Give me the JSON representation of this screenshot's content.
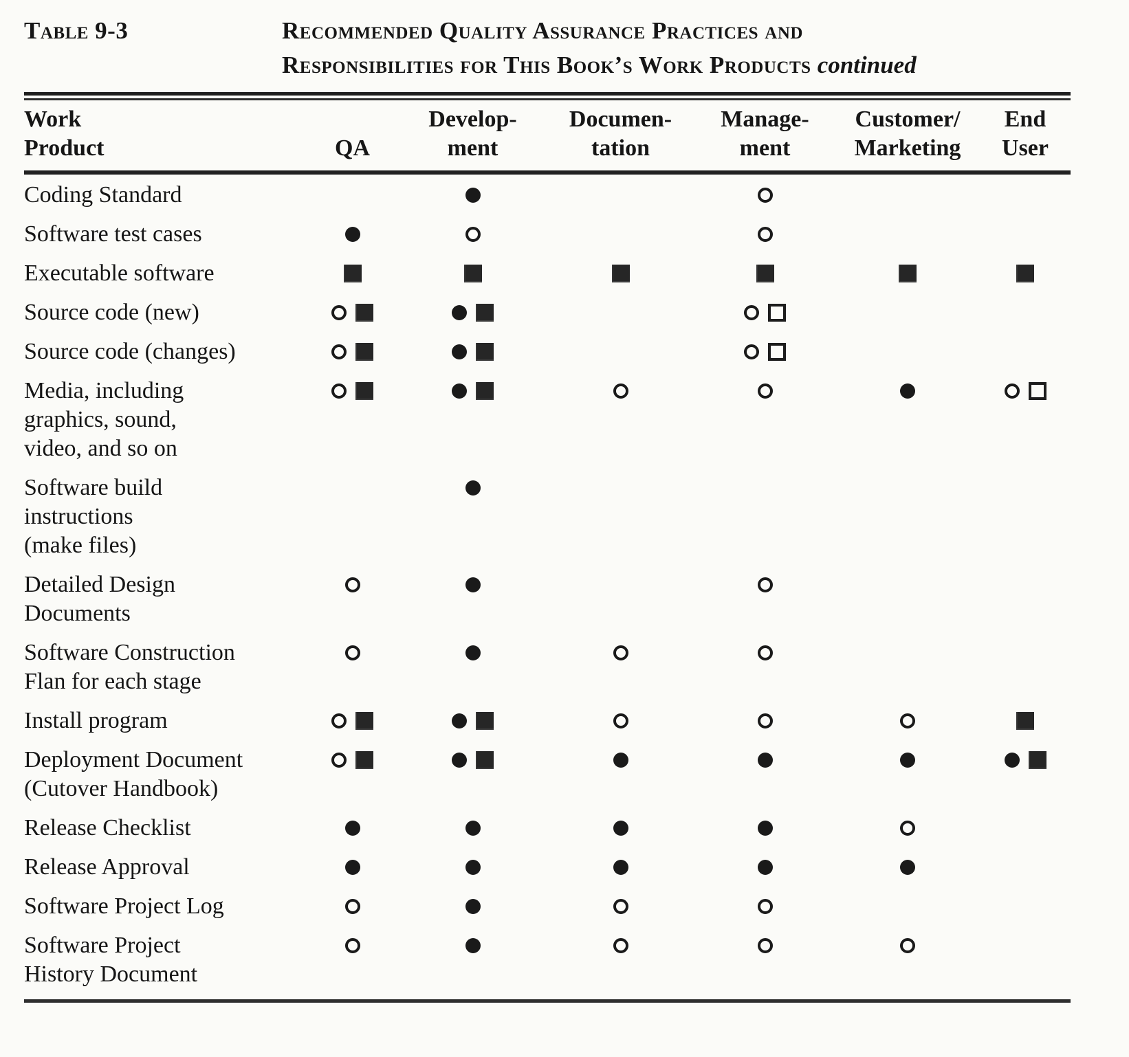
{
  "colors": {
    "ink": "#161616",
    "square_fill": "#262626",
    "paper": "#fbfbf8"
  },
  "caption": {
    "label": "Table 9-3",
    "title_line1": "Recommended Quality Assurance Practices and",
    "title_line2": "Responsibilities for This Book’s Work Products",
    "continued": "continued"
  },
  "columns": [
    {
      "key": "work_product",
      "line1": "Work",
      "line2": "Product"
    },
    {
      "key": "qa",
      "line1": "",
      "line2": "QA"
    },
    {
      "key": "development",
      "line1": "Develop-",
      "line2": "ment"
    },
    {
      "key": "documentation",
      "line1": "Documen-",
      "line2": "tation"
    },
    {
      "key": "management",
      "line1": "Manage-",
      "line2": "ment"
    },
    {
      "key": "customer_marketing",
      "line1": "Customer/",
      "line2": "Marketing"
    },
    {
      "key": "end_user",
      "line1": "End",
      "line2": "User"
    }
  ],
  "symbol_glyphs": {
    "filled-circle": "●",
    "open-circle": "○",
    "filled-square": "■",
    "open-square": "□"
  },
  "rows": [
    {
      "lines": [
        "Coding Standard"
      ],
      "cells": [
        [],
        [
          "filled-circle"
        ],
        [],
        [
          "open-circle"
        ],
        [],
        []
      ]
    },
    {
      "lines": [
        "Software test cases"
      ],
      "cells": [
        [
          "filled-circle"
        ],
        [
          "open-circle"
        ],
        [],
        [
          "open-circle"
        ],
        [],
        []
      ]
    },
    {
      "lines": [
        "Executable software"
      ],
      "cells": [
        [
          "filled-square"
        ],
        [
          "filled-square"
        ],
        [
          "filled-square"
        ],
        [
          "filled-square"
        ],
        [
          "filled-square"
        ],
        [
          "filled-square"
        ]
      ]
    },
    {
      "lines": [
        "Source code (new)"
      ],
      "cells": [
        [
          "open-circle",
          "filled-square"
        ],
        [
          "filled-circle",
          "filled-square"
        ],
        [],
        [
          "open-circle",
          "open-square"
        ],
        [],
        []
      ]
    },
    {
      "lines": [
        "Source code (changes)"
      ],
      "cells": [
        [
          "open-circle",
          "filled-square"
        ],
        [
          "filled-circle",
          "filled-square"
        ],
        [],
        [
          "open-circle",
          "open-square"
        ],
        [],
        []
      ]
    },
    {
      "lines": [
        "Media, including",
        "graphics, sound,",
        "video, and so on"
      ],
      "cells": [
        [
          "open-circle",
          "filled-square"
        ],
        [
          "filled-circle",
          "filled-square"
        ],
        [
          "open-circle"
        ],
        [
          "open-circle"
        ],
        [
          "filled-circle"
        ],
        [
          "open-circle",
          "open-square"
        ]
      ]
    },
    {
      "lines": [
        "Software  build",
        "instructions",
        "(make files)"
      ],
      "cells": [
        [],
        [
          "filled-circle"
        ],
        [],
        [],
        [],
        []
      ]
    },
    {
      "lines": [
        "Detailed Design",
        "Documents"
      ],
      "cells": [
        [
          "open-circle"
        ],
        [
          "filled-circle"
        ],
        [],
        [
          "open-circle"
        ],
        [],
        []
      ]
    },
    {
      "lines": [
        "Software  Construction",
        "Flan for each stage"
      ],
      "cells": [
        [
          "open-circle"
        ],
        [
          "filled-circle"
        ],
        [
          "open-circle"
        ],
        [
          "open-circle"
        ],
        [],
        []
      ]
    },
    {
      "lines": [
        "Install program"
      ],
      "cells": [
        [
          "open-circle",
          "filled-square"
        ],
        [
          "filled-circle",
          "filled-square"
        ],
        [
          "open-circle"
        ],
        [
          "open-circle"
        ],
        [
          "open-circle"
        ],
        [
          "filled-square"
        ]
      ]
    },
    {
      "lines": [
        "Deployment Document",
        "(Cutover  Handbook)"
      ],
      "cells": [
        [
          "open-circle",
          "filled-square"
        ],
        [
          "filled-circle",
          "filled-square"
        ],
        [
          "filled-circle"
        ],
        [
          "filled-circle"
        ],
        [
          "filled-circle"
        ],
        [
          "filled-circle",
          "filled-square"
        ]
      ]
    },
    {
      "lines": [
        "Release  Checklist"
      ],
      "cells": [
        [
          "filled-circle"
        ],
        [
          "filled-circle"
        ],
        [
          "filled-circle"
        ],
        [
          "filled-circle"
        ],
        [
          "open-circle"
        ],
        []
      ]
    },
    {
      "lines": [
        "Release  Approval"
      ],
      "cells": [
        [
          "filled-circle"
        ],
        [
          "filled-circle"
        ],
        [
          "filled-circle"
        ],
        [
          "filled-circle"
        ],
        [
          "filled-circle"
        ],
        []
      ]
    },
    {
      "lines": [
        "Software Project Log"
      ],
      "cells": [
        [
          "open-circle"
        ],
        [
          "filled-circle"
        ],
        [
          "open-circle"
        ],
        [
          "open-circle"
        ],
        [],
        []
      ]
    },
    {
      "lines": [
        "Software Project",
        "History Document"
      ],
      "cells": [
        [
          "open-circle"
        ],
        [
          "filled-circle"
        ],
        [
          "open-circle"
        ],
        [
          "open-circle"
        ],
        [
          "open-circle"
        ],
        []
      ]
    }
  ]
}
